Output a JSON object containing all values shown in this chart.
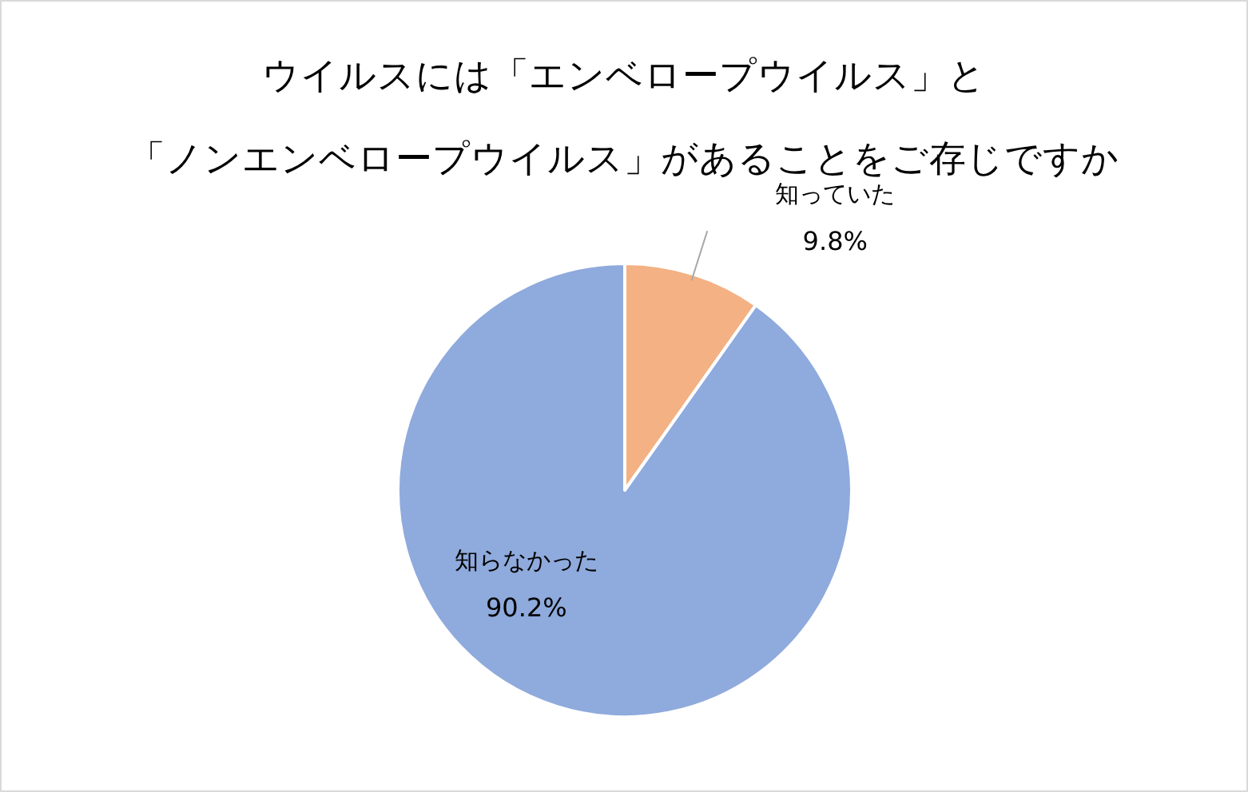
{
  "chart_data": {
    "type": "pie",
    "title": "ウイルスには「エンベロープウイルス」と",
    "subtitle": "「ノンエンベロープウイルス」があることをご存じですか",
    "categories": [
      "知っていた",
      "知らなかった"
    ],
    "values": [
      9.8,
      90.2
    ],
    "colors": [
      "#f4b183",
      "#8faadc"
    ],
    "value_labels": [
      "9.8%",
      "90.2%"
    ]
  }
}
